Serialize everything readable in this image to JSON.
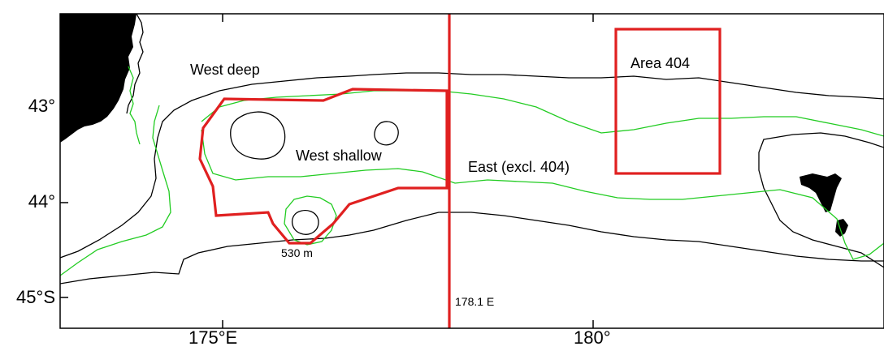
{
  "map": {
    "lat_ticks": [
      "43°",
      "44°",
      "45°S"
    ],
    "lon_ticks": [
      "175°E",
      "180°"
    ],
    "labels": {
      "west_deep": "West deep",
      "west_shallow": "West shallow",
      "east": "East (excl. 404)",
      "area_404": "Area 404",
      "depth_530": "530 m",
      "boundary_lon": "178.1 E"
    },
    "colors": {
      "land": "#000000",
      "contour_black": "#000000",
      "contour_green": "#22cc22",
      "strata_boundary": "#e02020"
    }
  }
}
